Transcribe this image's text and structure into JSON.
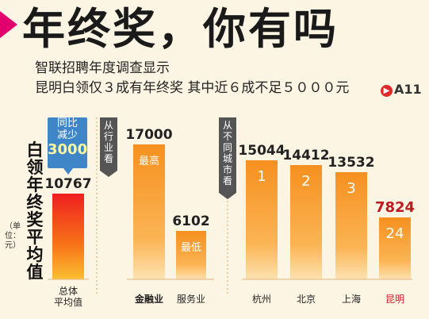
{
  "headline": "年终奖，你有吗",
  "subtitle_1": "智联招聘年度调查显示",
  "subtitle_2": "昆明白领仅３成有年终奖  其中近６成不足５０００元",
  "reference": "A11",
  "ref_icon": "right-arrow-circle-icon",
  "colors": {
    "accent": "#e2006f",
    "bar_orange": "#f79a2e",
    "bar_red": "#e8201f",
    "highlight_red": "#c0181f",
    "callout_blue": "#3f86c8"
  },
  "chart_data": {
    "type": "bar",
    "ylabel": "白领年终奖平均值",
    "unit": "（单位：元）",
    "change_callout": {
      "label": "同比减少",
      "value": "3000"
    },
    "groups": [
      {
        "label": "",
        "categories": [
          "总体平均值"
        ]
      },
      {
        "label": "从行业看",
        "categories": [
          "金融业",
          "服务业"
        ]
      },
      {
        "label": "从不同城市看",
        "categories": [
          "杭州",
          "北京",
          "上海",
          "昆明"
        ]
      }
    ],
    "bars": [
      {
        "category": "总体平均值",
        "category_display": "总体\n平均值",
        "value": 10767,
        "value_label": "10767",
        "inner_label": "",
        "highlight": "overall"
      },
      {
        "category": "金融业",
        "category_display": "金融业",
        "value": 17000,
        "value_label": "17000",
        "inner_label": "最高",
        "highlight": "bold"
      },
      {
        "category": "服务业",
        "category_display": "服务业",
        "value": 6102,
        "value_label": "6102",
        "inner_label": "最低",
        "highlight": ""
      },
      {
        "category": "杭州",
        "category_display": "杭州",
        "value": 15044,
        "value_label": "15044",
        "inner_label": "1",
        "highlight": ""
      },
      {
        "category": "北京",
        "category_display": "北京",
        "value": 14412,
        "value_label": "14412",
        "inner_label": "2",
        "highlight": ""
      },
      {
        "category": "上海",
        "category_display": "上海",
        "value": 13532,
        "value_label": "13532",
        "inner_label": "3",
        "highlight": ""
      },
      {
        "category": "昆明",
        "category_display": "昆明",
        "value": 7824,
        "value_label": "7824",
        "inner_label": "24",
        "highlight": "red"
      }
    ]
  }
}
